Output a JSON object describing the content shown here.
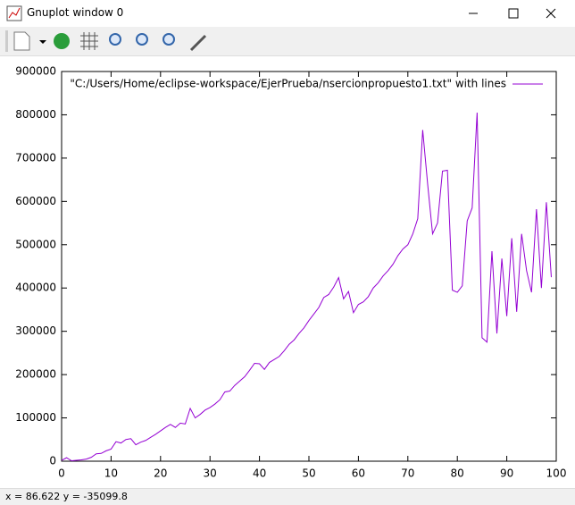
{
  "window": {
    "title": "Gnuplot window 0",
    "status": "x = 86.622 y = -35099.8"
  },
  "chart_data": {
    "type": "line",
    "x": [
      0,
      1,
      2,
      3,
      4,
      5,
      6,
      7,
      8,
      9,
      10,
      11,
      12,
      13,
      14,
      15,
      16,
      17,
      18,
      19,
      20,
      21,
      22,
      23,
      24,
      25,
      26,
      27,
      28,
      29,
      30,
      31,
      32,
      33,
      34,
      35,
      36,
      37,
      38,
      39,
      40,
      41,
      42,
      43,
      44,
      45,
      46,
      47,
      48,
      49,
      50,
      51,
      52,
      53,
      54,
      55,
      56,
      57,
      58,
      59,
      60,
      61,
      62,
      63,
      64,
      65,
      66,
      67,
      68,
      69,
      70,
      71,
      72,
      73,
      74,
      75,
      76,
      77,
      78,
      79,
      80,
      81,
      82,
      83,
      84,
      85,
      86,
      87,
      88,
      89,
      90,
      91,
      92,
      93,
      94,
      95,
      96,
      97,
      98,
      99
    ],
    "series": [
      {
        "name": "\"C:/Users/Home/eclipse-workspace/EjerPrueba/nsercionpropuesto1.txt\" with lines",
        "color": "#9400d3",
        "values": [
          2000,
          8000,
          1000,
          2000,
          3000,
          5000,
          9000,
          17000,
          18000,
          24000,
          28000,
          45000,
          42000,
          50000,
          52000,
          38000,
          44000,
          48000,
          55000,
          62000,
          70000,
          78000,
          85000,
          78000,
          88000,
          86000,
          122000,
          100000,
          108000,
          118000,
          124000,
          132000,
          142000,
          160000,
          162000,
          175000,
          185000,
          195000,
          210000,
          226000,
          225000,
          212000,
          228000,
          235000,
          242000,
          255000,
          270000,
          280000,
          295000,
          308000,
          325000,
          340000,
          355000,
          378000,
          385000,
          402000,
          424000,
          375000,
          392000,
          343000,
          362000,
          368000,
          380000,
          400000,
          412000,
          428000,
          440000,
          455000,
          475000,
          490000,
          500000,
          525000,
          560000,
          765000,
          640000,
          525000,
          550000,
          670000,
          672000,
          395000,
          390000,
          405000,
          555000,
          585000,
          805000,
          285000,
          275000,
          485000,
          295000,
          468000,
          335000,
          515000,
          345000,
          525000,
          440000,
          390000,
          582000,
          400000,
          598000,
          425000
        ]
      }
    ],
    "xlim": [
      0,
      100
    ],
    "ylim": [
      0,
      900000
    ],
    "xticks": [
      0,
      10,
      20,
      30,
      40,
      50,
      60,
      70,
      80,
      90,
      100
    ],
    "yticks": [
      0,
      100000,
      200000,
      300000,
      400000,
      500000,
      600000,
      700000,
      800000,
      900000
    ],
    "legend": "top-right"
  }
}
